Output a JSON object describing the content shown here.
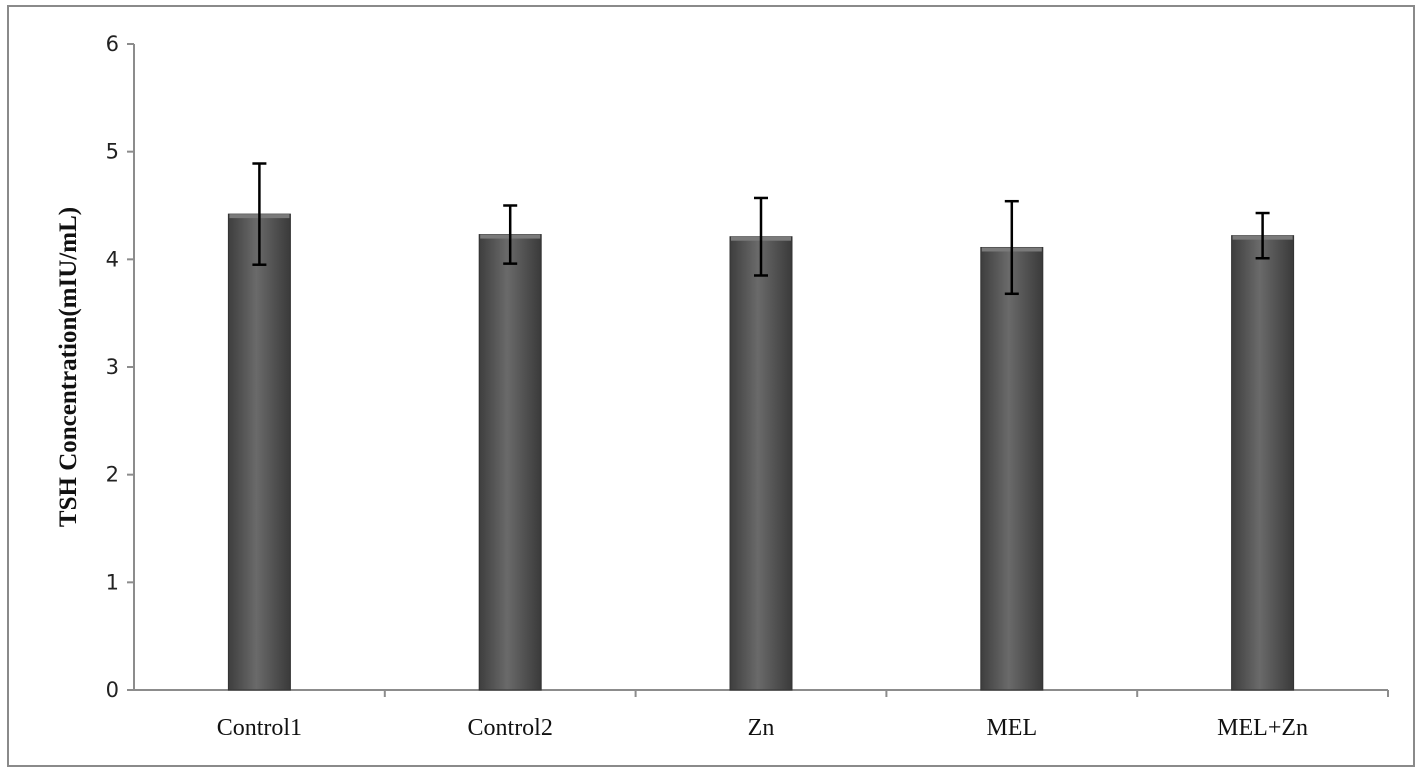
{
  "chart_data": {
    "type": "bar",
    "title": "",
    "xlabel": "",
    "ylabel": "TSH Concentration(mIU/mL)",
    "ylim": [
      0,
      6
    ],
    "yticks": [
      "0",
      "1",
      "2",
      "3",
      "4",
      "5",
      "6"
    ],
    "grid": false,
    "legend": "none",
    "categories": [
      "Control1",
      "Control2",
      "Zn",
      "MEL",
      "MEL+Zn"
    ],
    "series": [
      {
        "values": [
          4.42,
          4.23,
          4.21,
          4.11,
          4.22
        ],
        "error": [
          0.47,
          0.27,
          0.36,
          0.43,
          0.21
        ]
      }
    ],
    "colors": {
      "bar": "#555555",
      "bar_highlight": "#7a7a7a",
      "axis": "#8c8c8c",
      "error_bar": "#000000"
    }
  }
}
